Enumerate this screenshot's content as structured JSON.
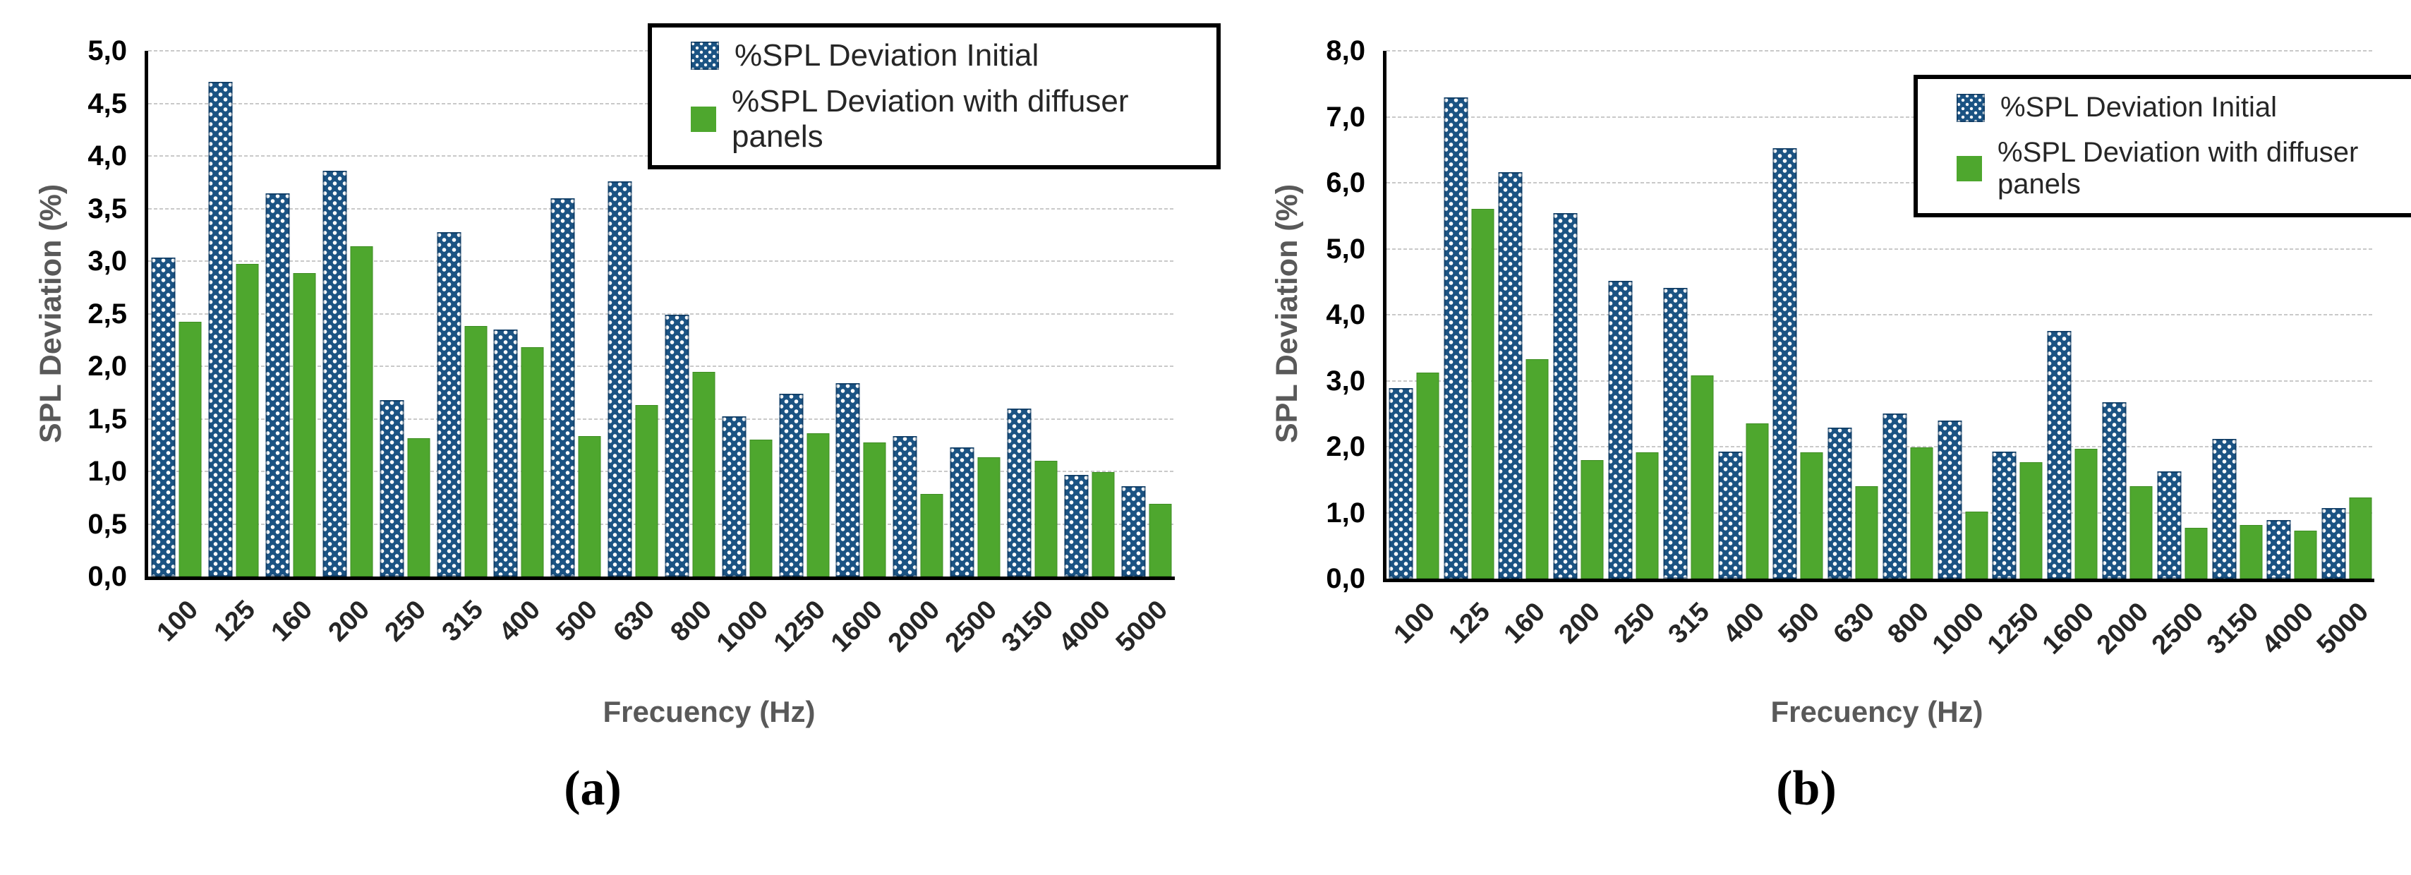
{
  "colors": {
    "initial_bar": "#1b5383",
    "initial_bar_pattern_dot": "#ffffff",
    "diffuser_bar": "#4ea72e",
    "gridline": "#c9c9c9",
    "axis_line": "#000000",
    "tick_label": "#3f3f3f",
    "axis_title": "#595959",
    "legend_text": "#262626",
    "caption_text": "#000000"
  },
  "legend": {
    "initial_label": "%SPL Deviation Initial",
    "diffuser_label": "%SPL Deviation with diffuser panels"
  },
  "chart_data": [
    {
      "id": "a",
      "type": "bar",
      "caption": "(a)",
      "xlabel": "Frecuency (Hz)",
      "ylabel": "SPL Deviation (%)",
      "ylim": [
        0,
        5
      ],
      "ytick_step": 0.5,
      "ytick_labels": [
        "5,0",
        "4,5",
        "4,0",
        "3,5",
        "3,0",
        "2,5",
        "2,0",
        "1,5",
        "1,0",
        "0,5",
        "0,0"
      ],
      "grid": true,
      "legend_position": "top-right",
      "categories": [
        "100",
        "125",
        "160",
        "200",
        "250",
        "315",
        "400",
        "500",
        "630",
        "800",
        "1000",
        "1250",
        "1600",
        "2000",
        "2500",
        "3150",
        "4000",
        "5000"
      ],
      "series": [
        {
          "name": "%SPL Deviation Initial",
          "values": [
            3.01,
            4.68,
            3.62,
            3.83,
            1.65,
            3.25,
            2.32,
            3.57,
            3.73,
            2.46,
            1.5,
            1.71,
            1.81,
            1.31,
            1.2,
            1.57,
            0.94,
            0.83
          ]
        },
        {
          "name": "%SPL Deviation with diffuser panels",
          "values": [
            2.41,
            2.96,
            2.87,
            3.13,
            1.3,
            2.37,
            2.17,
            1.32,
            1.62,
            1.93,
            1.29,
            1.35,
            1.26,
            0.77,
            1.12,
            1.09,
            0.98,
            0.68
          ]
        }
      ]
    },
    {
      "id": "b",
      "type": "bar",
      "caption": "(b)",
      "xlabel": "Frecuency (Hz)",
      "ylabel": "SPL Deviation (%)",
      "ylim": [
        0,
        8
      ],
      "ytick_step": 1.0,
      "ytick_labels": [
        "8,0",
        "7,0",
        "6,0",
        "5,0",
        "4,0",
        "3,0",
        "2,0",
        "1,0",
        "0,0"
      ],
      "grid": true,
      "legend_position": "top-right",
      "categories": [
        "100",
        "125",
        "160",
        "200",
        "250",
        "315",
        "400",
        "500",
        "630",
        "800",
        "1000",
        "1250",
        "1600",
        "2000",
        "2500",
        "3150",
        "4000",
        "5000"
      ],
      "series": [
        {
          "name": "%SPL Deviation Initial",
          "values": [
            2.85,
            7.25,
            6.12,
            5.5,
            4.47,
            4.36,
            1.88,
            6.48,
            2.25,
            2.46,
            2.35,
            1.88,
            3.71,
            2.63,
            1.58,
            2.07,
            0.84,
            1.03
          ]
        },
        {
          "name": "%SPL Deviation with diffuser panels",
          "values": [
            3.1,
            5.58,
            3.31,
            1.78,
            1.89,
            3.06,
            2.33,
            1.89,
            1.38,
            1.97,
            0.99,
            1.74,
            1.95,
            1.38,
            0.75,
            0.79,
            0.71,
            1.21
          ]
        }
      ]
    }
  ]
}
